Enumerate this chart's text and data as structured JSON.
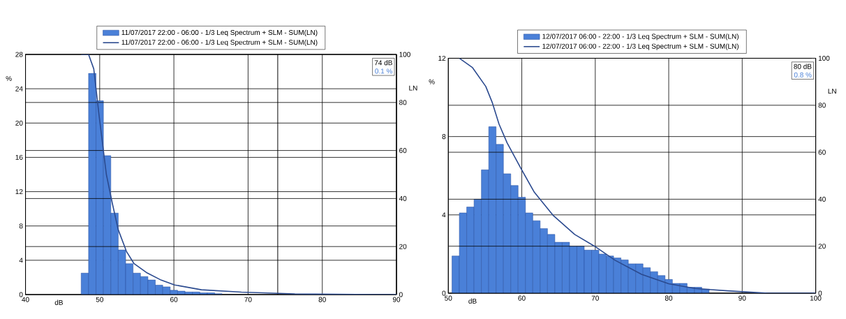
{
  "chart_data": [
    {
      "type": "histogram",
      "xlabel": "dB",
      "ylabel": "%",
      "y2label": "LN",
      "xlim": [
        40,
        90
      ],
      "xticks": [
        40,
        50,
        60,
        70,
        80,
        90
      ],
      "ylim": [
        0,
        28
      ],
      "yticks": [
        0,
        4,
        8,
        12,
        16,
        20,
        24,
        28
      ],
      "y2lim": [
        0,
        100
      ],
      "y2ticks": [
        0,
        20,
        40,
        60,
        80,
        100
      ],
      "grid": true,
      "legend": "top",
      "annotations": [
        "74 dB",
        "0.1 %"
      ],
      "ref_lines": [
        {
          "axis": "x",
          "value": 74
        }
      ],
      "series": [
        {
          "name": "11/07/2017 22:00 - 06:00 - 1/3 Leq Spectrum + SLM - SUM(LN)",
          "type": "histogram",
          "color": "#4a80d8",
          "bins": [
            47.5,
            48.5,
            49.5,
            50.5,
            51.5,
            52.5,
            53.5,
            54.5,
            55.5,
            56.5,
            57.5,
            58.5,
            59.5,
            60.5,
            61.5,
            62.5,
            63.5,
            64.5,
            65.5,
            66.5
          ],
          "values": [
            2.5,
            25.8,
            22.6,
            16.2,
            9.5,
            5.2,
            3.6,
            2.5,
            2.1,
            1.7,
            1.1,
            0.9,
            0.5,
            0.4,
            0.3,
            0.3,
            0.2,
            0.2,
            0.1
          ]
        },
        {
          "name": "11/07/2017 22:00 - 06:00 - 1/3 Leq Spectrum + SLM - SUM(LN)",
          "type": "line",
          "axis": "y2",
          "color": "#2b4a8f",
          "x": [
            47.5,
            48.5,
            49.2,
            49.9,
            50.9,
            51.7,
            52.5,
            53.6,
            54.6,
            56.4,
            58.3,
            60.1,
            63.7,
            69.1,
            76.3,
            87.2,
            90
          ],
          "values": [
            100,
            100,
            94,
            75,
            50,
            38,
            27,
            18,
            13,
            9,
            6,
            4,
            2,
            1,
            0.3,
            0,
            0
          ]
        }
      ]
    },
    {
      "type": "histogram",
      "xlabel": "dB",
      "ylabel": "%",
      "y2label": "LN",
      "xlim": [
        50,
        100
      ],
      "xticks": [
        50,
        60,
        70,
        80,
        90,
        100
      ],
      "ylim": [
        0,
        12
      ],
      "yticks": [
        0,
        4,
        8,
        12
      ],
      "y2lim": [
        0,
        100
      ],
      "y2ticks": [
        0,
        20,
        40,
        60,
        80,
        100
      ],
      "grid": true,
      "legend": "top",
      "annotations": [
        "80 dB",
        "0.8 %"
      ],
      "series": [
        {
          "name": "12/07/2017 06:00 - 22:00 - 1/3 Leq Spectrum + SLM - SUM(LN)",
          "type": "histogram",
          "color": "#4a80d8",
          "bins": [
            50.5,
            51.5,
            52.5,
            53.5,
            54.5,
            55.5,
            56.5,
            57.5,
            58.5,
            59.5,
            60.5,
            61.5,
            62.5,
            63.5,
            64.5,
            65.5,
            66.5,
            67.5,
            68.5,
            69.5,
            70.5,
            71.5,
            72.5,
            73.5,
            74.5,
            75.5,
            76.5,
            77.5,
            78.5,
            79.5,
            80.5,
            81.5,
            82.5,
            83.5,
            84.5,
            85.5
          ],
          "values": [
            1.9,
            4.1,
            4.4,
            4.8,
            6.3,
            8.5,
            7.6,
            6.1,
            5.5,
            4.9,
            4.1,
            3.7,
            3.3,
            3.0,
            2.6,
            2.6,
            2.4,
            2.4,
            2.2,
            2.2,
            2.0,
            1.9,
            1.8,
            1.7,
            1.5,
            1.5,
            1.3,
            1.1,
            0.9,
            0.7,
            0.5,
            0.5,
            0.3,
            0.3,
            0.2
          ]
        },
        {
          "name": "12/07/2017 06:00 - 22:00 - 1/3 Leq Spectrum + SLM - SUM(LN)",
          "type": "line",
          "axis": "y2",
          "color": "#2b4a8f",
          "x": [
            51.5,
            53.3,
            55.1,
            56,
            56.9,
            58,
            59.9,
            61.7,
            64.3,
            67.2,
            69.9,
            72.7,
            76.3,
            80,
            83.6,
            88,
            93.5,
            100
          ],
          "values": [
            100,
            96,
            88,
            81,
            72,
            64,
            53,
            43,
            33,
            25,
            20,
            14,
            8,
            4,
            2,
            1,
            0,
            0
          ]
        }
      ]
    }
  ]
}
